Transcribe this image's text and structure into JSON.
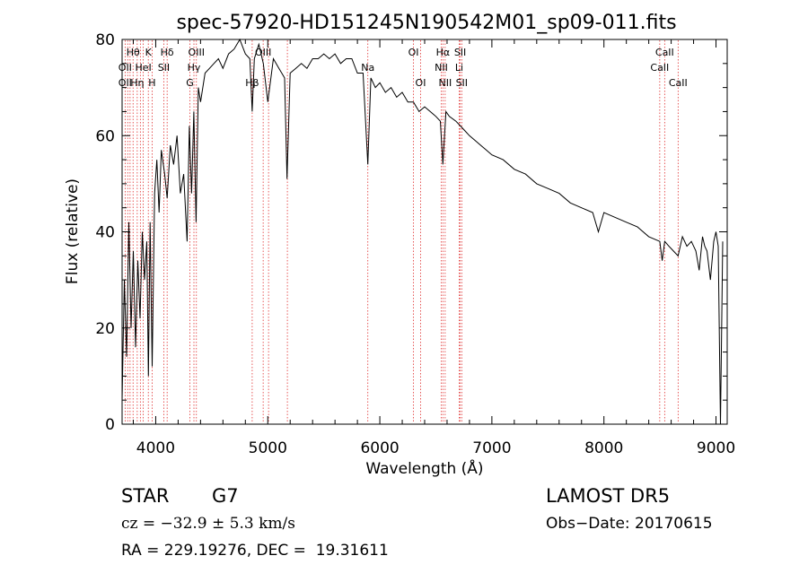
{
  "chart_data": {
    "type": "line",
    "title": "spec-57920-HD151245N190542M01_sp09-011.fits",
    "xlabel": "Wavelength (Å)",
    "ylabel": "Flux (relative)",
    "xlim": [
      3700,
      9100
    ],
    "ylim": [
      0,
      80
    ],
    "xticks": [
      4000,
      5000,
      6000,
      7000,
      8000,
      9000
    ],
    "yticks": [
      0,
      20,
      40,
      60,
      80
    ],
    "grid": false,
    "series": [
      {
        "x": [
          3700,
          3720,
          3740,
          3760,
          3780,
          3800,
          3820,
          3840,
          3860,
          3880,
          3900,
          3920,
          3935,
          3950,
          3968,
          3990,
          4010,
          4030,
          4050,
          4080,
          4102,
          4130,
          4160,
          4190,
          4220,
          4250,
          4280,
          4300,
          4320,
          4340,
          4360,
          4380,
          4400,
          4440,
          4480,
          4520,
          4560,
          4600,
          4650,
          4700,
          4750,
          4800,
          4840,
          4861,
          4880,
          4920,
          4960,
          5000,
          5050,
          5100,
          5150,
          5172,
          5200,
          5250,
          5300,
          5350,
          5400,
          5450,
          5500,
          5550,
          5600,
          5650,
          5700,
          5750,
          5800,
          5850,
          5893,
          5920,
          5960,
          6000,
          6050,
          6100,
          6150,
          6200,
          6250,
          6300,
          6350,
          6400,
          6450,
          6500,
          6540,
          6563,
          6590,
          6620,
          6680,
          6720,
          6760,
          6800,
          6850,
          6900,
          6950,
          7000,
          7100,
          7200,
          7300,
          7400,
          7500,
          7600,
          7700,
          7800,
          7900,
          7950,
          8000,
          8100,
          8200,
          8300,
          8400,
          8498,
          8520,
          8542,
          8580,
          8620,
          8662,
          8700,
          8740,
          8780,
          8820,
          8850,
          8880,
          8900,
          8920,
          8950,
          8980,
          9000,
          9020,
          9040,
          9060
        ],
        "y": [
          5,
          30,
          14,
          42,
          20,
          36,
          16,
          34,
          22,
          40,
          30,
          38,
          10,
          42,
          12,
          48,
          55,
          44,
          57,
          52,
          47,
          58,
          54,
          60,
          48,
          52,
          38,
          62,
          48,
          65,
          42,
          70,
          67,
          73,
          74,
          75,
          76,
          74,
          77,
          78,
          80,
          77,
          76,
          65,
          76,
          79,
          75,
          67,
          76,
          74,
          72,
          51,
          73,
          74,
          75,
          74,
          76,
          76,
          77,
          76,
          77,
          75,
          76,
          76,
          73,
          73,
          54,
          72,
          70,
          71,
          69,
          70,
          68,
          69,
          67,
          67,
          65,
          66,
          65,
          64,
          63,
          54,
          65,
          64,
          63,
          62,
          61,
          60,
          59,
          58,
          57,
          56,
          55,
          53,
          52,
          50,
          49,
          48,
          46,
          45,
          44,
          40,
          44,
          43,
          42,
          41,
          39,
          38,
          34,
          38,
          37,
          36,
          35,
          39,
          37,
          38,
          36,
          32,
          39,
          37,
          36,
          30,
          38,
          40,
          37,
          0,
          38
        ]
      }
    ],
    "lines": [
      {
        "label": "Hθ",
        "x": 3798,
        "row": 1
      },
      {
        "label": "K",
        "x": 3934,
        "row": 1
      },
      {
        "label": "Hδ",
        "x": 4102,
        "row": 1
      },
      {
        "label": "OIII",
        "x": 4363,
        "row": 1
      },
      {
        "label": "OIII",
        "x": 4959,
        "row": 1
      },
      {
        "label": "OI",
        "x": 6300,
        "row": 1
      },
      {
        "label": "Hα",
        "x": 6563,
        "row": 1
      },
      {
        "label": "SII",
        "x": 6717,
        "row": 1
      },
      {
        "label": "CaII",
        "x": 8542,
        "row": 1
      },
      {
        "label": "OII",
        "x": 3727,
        "row": 2
      },
      {
        "label": "HeI",
        "x": 3889,
        "row": 2
      },
      {
        "label": "SII",
        "x": 4072,
        "row": 2
      },
      {
        "label": "Hγ",
        "x": 4341,
        "row": 2
      },
      {
        "label": "NII",
        "x": 6548,
        "row": 2
      },
      {
        "label": "Li",
        "x": 6708,
        "row": 2
      },
      {
        "label": "CaII",
        "x": 8498,
        "row": 2
      },
      {
        "label": "OII",
        "x": 3727,
        "row": 3
      },
      {
        "label": "Hη",
        "x": 3835,
        "row": 3
      },
      {
        "label": "H",
        "x": 3968,
        "row": 3
      },
      {
        "label": "G",
        "x": 4305,
        "row": 3
      },
      {
        "label": "Hβ",
        "x": 4861,
        "row": 3
      },
      {
        "label": "Na",
        "x": 5893,
        "row": 4
      },
      {
        "label": "OI",
        "x": 6364,
        "row": 3
      },
      {
        "label": "NII",
        "x": 6583,
        "row": 3
      },
      {
        "label": "SII",
        "x": 6731,
        "row": 3
      },
      {
        "label": "CaII",
        "x": 8662,
        "row": 3
      }
    ],
    "extra_lines_x": [
      3750,
      3771,
      3863,
      4861,
      5007,
      5175,
      6300,
      6583,
      6731
    ]
  },
  "info": {
    "object": "STAR",
    "subclass": "G7",
    "cz": "cz = −32.9 ± 5.3 km/s",
    "coords": "RA = 229.19276, DEC =  19.31611",
    "survey": "LAMOST DR5",
    "obsdate": "Obs−Date: 20170615"
  }
}
